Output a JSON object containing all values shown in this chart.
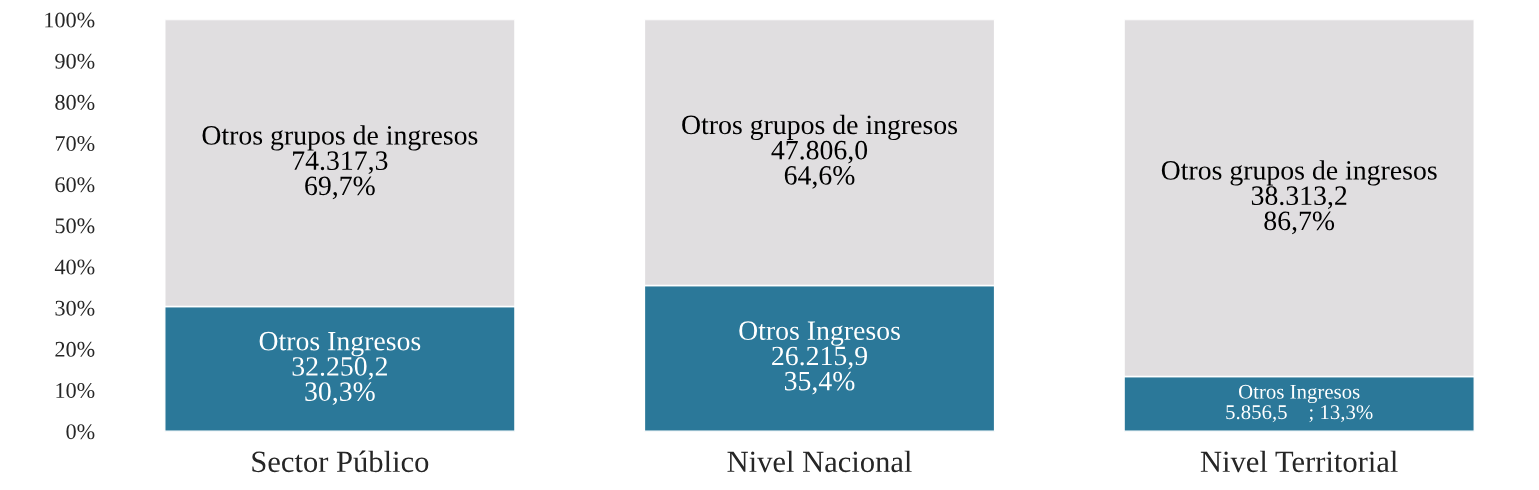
{
  "chart_data": {
    "type": "bar",
    "stacked": true,
    "categories": [
      "Sector Público",
      "Nivel Nacional",
      "Nivel Territorial"
    ],
    "series": [
      {
        "name": "Otros Ingresos",
        "color": "#2b7899",
        "values": [
          30.3,
          35.4,
          13.3
        ],
        "value_labels": [
          "32.250,2\n30,3%",
          "26.215,9\n35,4%",
          "5.856,5    ; 13,3%"
        ]
      },
      {
        "name": "Otros grupos de ingresos",
        "color": "#e0dee0",
        "values": [
          69.7,
          64.6,
          86.7
        ],
        "value_labels": [
          "74.317,3\n69,7%",
          "47.806,0\n64,6%",
          "38.313,2\n86,7%"
        ]
      }
    ],
    "ylim": [
      0,
      100
    ],
    "yticks": [
      {
        "value": 0,
        "label": "0%"
      },
      {
        "value": 10,
        "label": "10%"
      },
      {
        "value": 20,
        "label": "20%"
      },
      {
        "value": 30,
        "label": "30%"
      },
      {
        "value": 40,
        "label": "40%"
      },
      {
        "value": 50,
        "label": "50%"
      },
      {
        "value": 60,
        "label": "60%"
      },
      {
        "value": 70,
        "label": "70%"
      },
      {
        "value": 80,
        "label": "80%"
      },
      {
        "value": 90,
        "label": "90%"
      },
      {
        "value": 100,
        "label": "100%"
      }
    ],
    "grid": false,
    "legend": false
  }
}
